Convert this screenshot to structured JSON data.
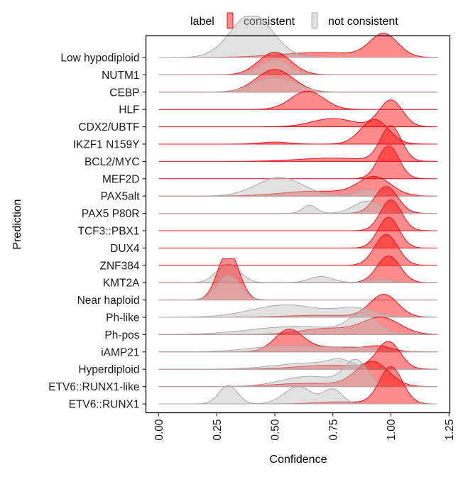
{
  "chart_data": {
    "type": "ridgeline",
    "xlabel": "Confidence",
    "ylabel": "Prediction",
    "xlim": [
      -0.05,
      1.25
    ],
    "xticks": [
      "0.00",
      "0.25",
      "0.50",
      "0.75",
      "1.00",
      "1.25"
    ],
    "legend": {
      "title": "label",
      "position": "top",
      "entries": [
        {
          "name": "consistent",
          "color": "#ff0000"
        },
        {
          "name": "not consistent",
          "color": "#bdbdbd"
        }
      ]
    },
    "categories": [
      "Low hypodiploid",
      "NUTM1",
      "CEBP",
      "HLF",
      "CDX2/UBTF",
      "IKZF1 N159Y",
      "BCL2/MYC",
      "MEF2D",
      "PAX5alt",
      "PAX5 P80R",
      "TCF3::PBX1",
      "DUX4",
      "ZNF384",
      "KMT2A",
      "Near haploid",
      "Ph-like",
      "Ph-pos",
      "iAMP21",
      "Hyperdiploid",
      "ETV6::RUNX1-like",
      "ETV6::RUNX1"
    ],
    "series": [
      {
        "name": "consistent",
        "peaks": [
          [
            [
              0.97,
              0.06,
              0.55
            ],
            [
              0.7,
              0.18,
              0.12
            ]
          ],
          [
            [
              0.5,
              0.07,
              0.55
            ]
          ],
          [
            [
              0.5,
              0.08,
              0.55
            ]
          ],
          [
            [
              0.64,
              0.07,
              0.45
            ]
          ],
          [
            [
              1.0,
              0.05,
              0.65
            ],
            [
              0.75,
              0.09,
              0.2
            ]
          ],
          [
            [
              0.93,
              0.06,
              0.6
            ],
            [
              0.5,
              0.06,
              0.05
            ]
          ],
          [
            [
              1.0,
              0.045,
              0.85
            ],
            [
              0.75,
              0.15,
              0.08
            ]
          ],
          [
            [
              0.99,
              0.045,
              0.8
            ]
          ],
          [
            [
              0.93,
              0.07,
              0.45
            ],
            [
              0.68,
              0.15,
              0.12
            ]
          ],
          [
            [
              0.98,
              0.05,
              0.65
            ]
          ],
          [
            [
              1.0,
              0.045,
              0.75
            ]
          ],
          [
            [
              0.99,
              0.045,
              0.75
            ]
          ],
          [
            [
              0.98,
              0.05,
              0.75
            ]
          ],
          [
            [
              0.99,
              0.05,
              0.65
            ]
          ],
          [
            [
              0.3,
              0.045,
              1.2
            ]
          ],
          [
            [
              0.97,
              0.06,
              0.55
            ],
            [
              0.7,
              0.15,
              0.05
            ]
          ],
          [
            [
              0.96,
              0.08,
              0.4
            ],
            [
              0.73,
              0.12,
              0.15
            ]
          ],
          [
            [
              0.56,
              0.06,
              0.5
            ],
            [
              0.75,
              0.15,
              0.12
            ],
            [
              0.95,
              0.05,
              0.1
            ]
          ],
          [
            [
              0.99,
              0.05,
              0.65
            ],
            [
              0.75,
              0.15,
              0.1
            ]
          ],
          [
            [
              0.92,
              0.07,
              0.6
            ],
            [
              0.65,
              0.15,
              0.08
            ]
          ],
          [
            [
              1.0,
              0.05,
              0.9
            ],
            [
              0.78,
              0.1,
              0.05
            ]
          ]
        ]
      },
      {
        "name": "not consistent",
        "peaks": [
          [
            [
              0.4,
              0.09,
              1.05
            ]
          ],
          [
            [
              0.5,
              0.06,
              0.38
            ]
          ],
          [
            [
              0.5,
              0.09,
              0.35
            ]
          ],
          [],
          [],
          [],
          [],
          [],
          [
            [
              0.52,
              0.1,
              0.45
            ],
            [
              0.9,
              0.05,
              0.15
            ]
          ],
          [
            [
              0.65,
              0.03,
              0.2
            ],
            [
              0.9,
              0.06,
              0.3
            ]
          ],
          [],
          [],
          [],
          [
            [
              0.3,
              0.05,
              0.45
            ],
            [
              0.7,
              0.05,
              0.15
            ],
            [
              0.95,
              0.05,
              0.08
            ]
          ],
          [
            [
              0.3,
              0.05,
              0.6
            ]
          ],
          [
            [
              0.55,
              0.15,
              0.3
            ],
            [
              0.85,
              0.08,
              0.2
            ]
          ],
          [
            [
              0.6,
              0.2,
              0.2
            ],
            [
              0.88,
              0.06,
              0.45
            ]
          ],
          [
            [
              0.55,
              0.15,
              0.15
            ],
            [
              0.85,
              0.1,
              0.1
            ]
          ],
          [
            [
              0.65,
              0.15,
              0.15
            ],
            [
              0.78,
              0.05,
              0.15
            ]
          ],
          [
            [
              0.65,
              0.12,
              0.25
            ],
            [
              0.85,
              0.05,
              0.6
            ]
          ],
          [
            [
              0.3,
              0.04,
              0.45
            ],
            [
              0.6,
              0.06,
              0.42
            ],
            [
              0.75,
              0.04,
              0.35
            ]
          ]
        ]
      }
    ]
  }
}
